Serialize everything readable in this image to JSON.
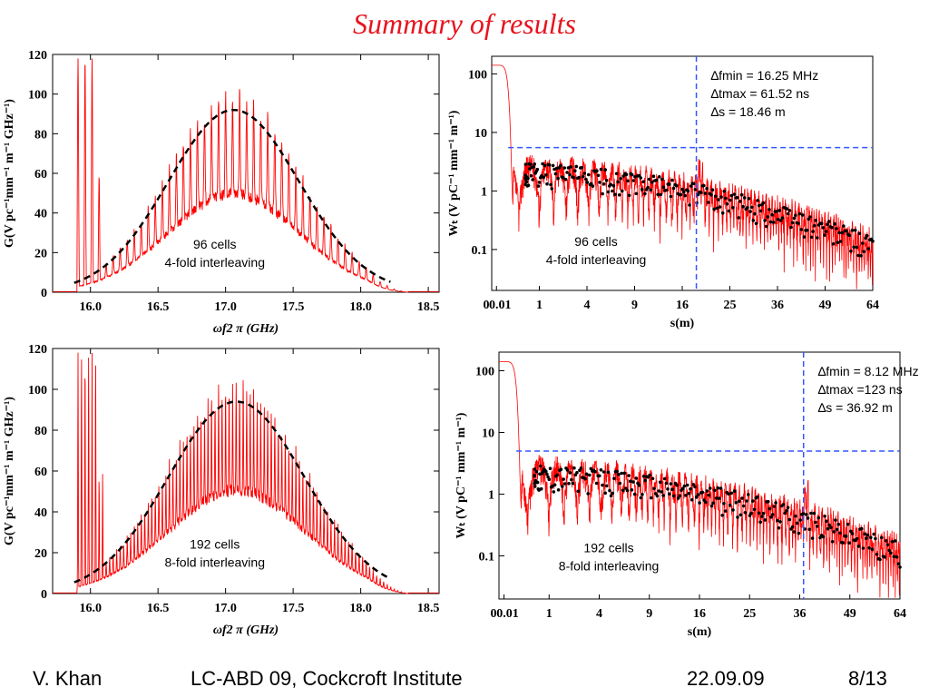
{
  "title": "Summary of results",
  "footer": {
    "author": "V. Khan",
    "event": "LC-ABD 09, Cockcroft Institute",
    "date": "22.09.09",
    "page": "8/13"
  },
  "colors": {
    "title": "#e8141e",
    "curve": "#ff0000",
    "fit": "#000000",
    "guide": "#3355ff"
  },
  "chart_data": [
    {
      "id": "tl",
      "type": "line",
      "xlabel": "ωf2 π (GHz)",
      "ylabel": "G(V pc⁻¹mm⁻¹ m⁻¹ GHz⁻¹)",
      "xlim": [
        15.72,
        18.58
      ],
      "ylim": [
        0,
        120
      ],
      "xticks": [
        "16.0",
        "16.5",
        "17.0",
        "17.5",
        "18.0",
        "18.5"
      ],
      "yticks": [
        "0",
        "20",
        "40",
        "60",
        "80",
        "100",
        "120"
      ],
      "annotation": [
        "96 cells",
        "4-fold interleaving"
      ],
      "envelope": {
        "center": 17.06,
        "width": 0.75,
        "peak": 92,
        "from": 15.88,
        "to": 18.22
      },
      "resonance_spacing": 0.052,
      "series": [
        {
          "values_note": "",
          "style": "red"
        }
      ]
    },
    {
      "id": "bl",
      "type": "line",
      "xlabel": "ωf2 π (GHz)",
      "ylabel": "G(V pc⁻¹mm⁻¹ m⁻¹ GHz⁻¹)",
      "xlim": [
        15.72,
        18.58
      ],
      "ylim": [
        0,
        120
      ],
      "xticks": [
        "16.0",
        "16.5",
        "17.0",
        "17.5",
        "18.0",
        "18.5"
      ],
      "yticks": [
        "0",
        "20",
        "40",
        "60",
        "80",
        "100",
        "120"
      ],
      "annotation": [
        "192 cells",
        "8-fold interleaving"
      ],
      "envelope": {
        "center": 17.08,
        "width": 0.78,
        "peak": 94,
        "from": 15.88,
        "to": 18.22
      },
      "resonance_spacing": 0.026
    },
    {
      "id": "tr",
      "type": "line",
      "xlabel": "s(m)",
      "ylabel": "Wₜ (V pC⁻¹ mm⁻¹ m⁻¹)",
      "xscale": "sqrt",
      "yscale": "log",
      "xlim": [
        0,
        64
      ],
      "ylim": [
        0.02,
        200
      ],
      "xticks": [
        "0",
        "0.01",
        "1",
        "4",
        "9",
        "16",
        "25",
        "36",
        "49",
        "64"
      ],
      "yticks": [
        "100",
        "10",
        "1",
        "0.1"
      ],
      "info": [
        "∆fmin = 16.25 MHz",
        "∆tmax = 61.52 ns",
        "∆s = 18.46 m"
      ],
      "annotation": [
        "96 cells",
        "4-fold interleaving"
      ],
      "guide_x": 18.46,
      "guide_y": 5.5
    },
    {
      "id": "br",
      "type": "line",
      "xlabel": "s(m)",
      "ylabel": "Wₜ (V pC⁻¹ mm⁻¹ m⁻¹)",
      "xscale": "sqrt",
      "yscale": "log",
      "xlim": [
        0,
        64
      ],
      "ylim": [
        0.02,
        200
      ],
      "xticks": [
        "0",
        "0.01",
        "1",
        "4",
        "9",
        "16",
        "25",
        "36",
        "49",
        "64"
      ],
      "yticks": [
        "100",
        "10",
        "1",
        "0.1"
      ],
      "info": [
        "∆fmin = 8.12 MHz",
        "∆tmax =123 ns",
        "∆s = 36.92 m"
      ],
      "annotation": [
        "192 cells",
        "8-fold interleaving"
      ],
      "guide_x": 36.92,
      "guide_y": 5.0
    }
  ]
}
